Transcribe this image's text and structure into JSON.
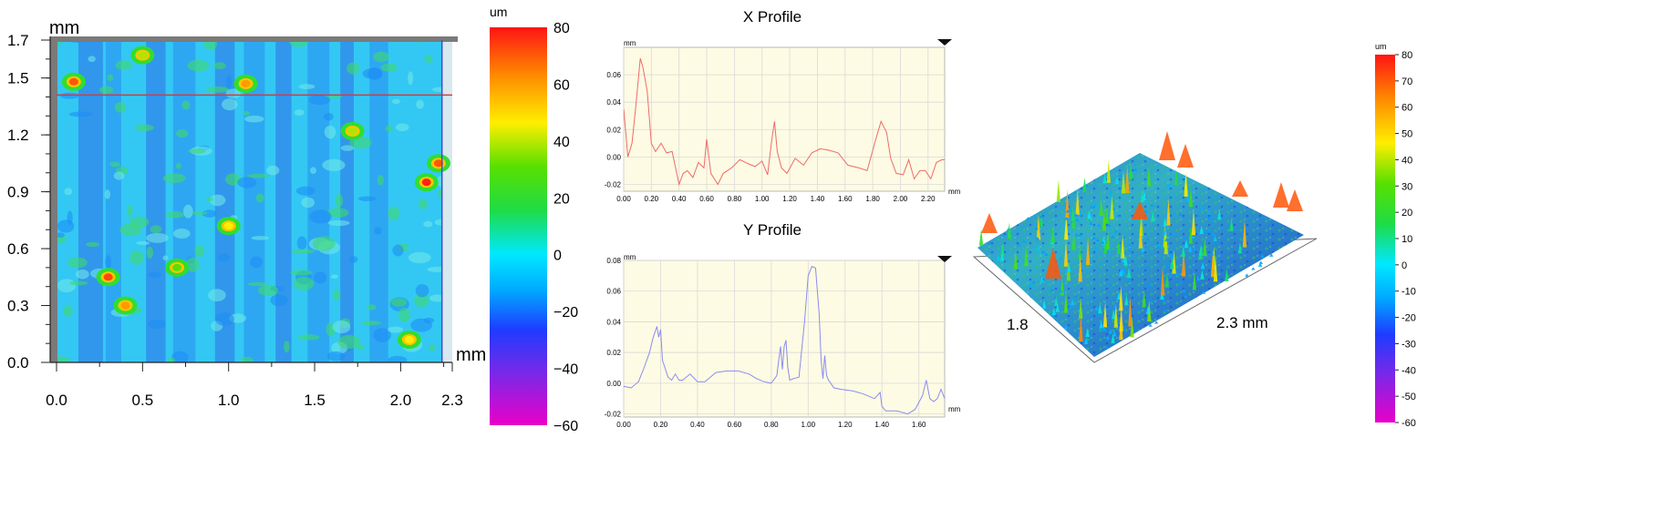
{
  "colors": {
    "xprofile_line": "#f06a6a",
    "yprofile_line": "#8c8cf0",
    "profile_bg": "#fdfbe3",
    "crosshair_h": "#d43c3c",
    "crosshair_v": "#3c50c8"
  },
  "chart_data": [
    {
      "type": "heatmap",
      "id": "height_map",
      "x_unit": "mm",
      "y_unit": "mm",
      "xlim": [
        0,
        2.3
      ],
      "ylim": [
        0,
        1.7
      ],
      "x_ticks": [
        "0.0",
        "0.5",
        "1.0",
        "1.5",
        "2.0",
        "2.3"
      ],
      "y_ticks": [
        "0.0",
        "0.3",
        "0.6",
        "0.9",
        "1.2",
        "1.5",
        "1.7"
      ],
      "crosshair": {
        "x": 2.24,
        "y": 1.41
      },
      "peaks": [
        {
          "x": 0.1,
          "y": 1.48,
          "z": 70
        },
        {
          "x": 1.1,
          "y": 1.47,
          "z": 60
        },
        {
          "x": 0.5,
          "y": 1.62,
          "z": 45
        },
        {
          "x": 0.3,
          "y": 0.45,
          "z": 72
        },
        {
          "x": 0.4,
          "y": 0.3,
          "z": 60
        },
        {
          "x": 2.15,
          "y": 0.95,
          "z": 78
        },
        {
          "x": 2.22,
          "y": 1.05,
          "z": 70
        },
        {
          "x": 1.0,
          "y": 0.72,
          "z": 50
        },
        {
          "x": 2.05,
          "y": 0.12,
          "z": 50
        },
        {
          "x": 1.72,
          "y": 1.22,
          "z": 45
        },
        {
          "x": 0.7,
          "y": 0.5,
          "z": 40
        }
      ],
      "colorbar": {
        "unit": "um",
        "range": [
          -60,
          80
        ],
        "ticks": [
          "80",
          "60",
          "40",
          "20",
          "0",
          "−20",
          "−40",
          "−60"
        ]
      }
    },
    {
      "type": "line",
      "id": "x_profile",
      "title": "X Profile",
      "y_unit": "mm",
      "x_unit": "mm",
      "xlim": [
        0,
        2.32
      ],
      "ylim": [
        -0.025,
        0.08
      ],
      "x_ticks": [
        "0.00",
        "0.20",
        "0.40",
        "0.60",
        "0.80",
        "1.00",
        "1.20",
        "1.40",
        "1.60",
        "1.80",
        "2.00",
        "2.20"
      ],
      "y_ticks": [
        "0.06",
        "0.04",
        "0.02",
        "0.00",
        "-0.02"
      ],
      "x": [
        0.0,
        0.03,
        0.06,
        0.09,
        0.12,
        0.14,
        0.17,
        0.2,
        0.23,
        0.27,
        0.31,
        0.35,
        0.4,
        0.43,
        0.46,
        0.5,
        0.54,
        0.58,
        0.6,
        0.63,
        0.68,
        0.72,
        0.78,
        0.84,
        0.9,
        0.95,
        1.0,
        1.04,
        1.07,
        1.09,
        1.11,
        1.14,
        1.18,
        1.24,
        1.3,
        1.36,
        1.42,
        1.48,
        1.55,
        1.62,
        1.7,
        1.76,
        1.82,
        1.86,
        1.9,
        1.93,
        1.97,
        2.02,
        2.06,
        2.1,
        2.14,
        2.18,
        2.22,
        2.26,
        2.3,
        2.32
      ],
      "y": [
        0.035,
        0.0,
        0.01,
        0.04,
        0.072,
        0.065,
        0.048,
        0.01,
        0.004,
        0.01,
        0.003,
        0.004,
        -0.02,
        -0.012,
        -0.01,
        -0.015,
        -0.004,
        -0.008,
        0.013,
        -0.012,
        -0.02,
        -0.012,
        -0.008,
        -0.002,
        -0.005,
        -0.007,
        -0.003,
        -0.013,
        0.012,
        0.026,
        0.004,
        -0.008,
        -0.012,
        -0.001,
        -0.006,
        0.003,
        0.006,
        0.005,
        0.003,
        -0.006,
        -0.008,
        -0.01,
        0.012,
        0.026,
        0.018,
        -0.001,
        -0.012,
        -0.013,
        -0.002,
        -0.016,
        -0.01,
        -0.01,
        -0.016,
        -0.004,
        -0.002,
        -0.002
      ]
    },
    {
      "type": "line",
      "id": "y_profile",
      "title": "Y Profile",
      "y_unit": "mm",
      "x_unit": "mm",
      "xlim": [
        0,
        1.74
      ],
      "ylim": [
        -0.022,
        0.08
      ],
      "x_ticks": [
        "0.00",
        "0.20",
        "0.40",
        "0.60",
        "0.80",
        "1.00",
        "1.20",
        "1.40",
        "1.60"
      ],
      "y_ticks": [
        "0.08",
        "0.06",
        "0.04",
        "0.02",
        "0.00",
        "-0.02"
      ],
      "x": [
        0.0,
        0.04,
        0.08,
        0.11,
        0.14,
        0.16,
        0.18,
        0.19,
        0.2,
        0.21,
        0.24,
        0.26,
        0.28,
        0.3,
        0.32,
        0.36,
        0.4,
        0.44,
        0.5,
        0.56,
        0.62,
        0.68,
        0.72,
        0.76,
        0.8,
        0.83,
        0.85,
        0.86,
        0.87,
        0.88,
        0.89,
        0.9,
        0.92,
        0.95,
        0.98,
        1.0,
        1.02,
        1.04,
        1.06,
        1.07,
        1.08,
        1.09,
        1.1,
        1.11,
        1.14,
        1.18,
        1.24,
        1.3,
        1.36,
        1.39,
        1.4,
        1.42,
        1.48,
        1.54,
        1.58,
        1.62,
        1.64,
        1.66,
        1.68,
        1.7,
        1.72,
        1.74
      ],
      "y": [
        -0.002,
        -0.003,
        0.001,
        0.01,
        0.02,
        0.03,
        0.037,
        0.03,
        0.035,
        0.015,
        0.004,
        0.002,
        0.006,
        0.002,
        0.002,
        0.006,
        0.001,
        0.001,
        0.007,
        0.008,
        0.008,
        0.006,
        0.003,
        0.001,
        0.0,
        0.005,
        0.024,
        0.009,
        0.024,
        0.028,
        0.01,
        0.002,
        0.003,
        0.004,
        0.04,
        0.07,
        0.076,
        0.075,
        0.045,
        0.015,
        0.003,
        0.018,
        0.005,
        0.002,
        -0.003,
        -0.004,
        -0.005,
        -0.007,
        -0.01,
        -0.006,
        -0.015,
        -0.018,
        -0.018,
        -0.02,
        -0.017,
        -0.008,
        0.002,
        -0.01,
        -0.012,
        -0.01,
        -0.004,
        -0.01
      ]
    },
    {
      "type": "surface3d",
      "id": "surface_3d",
      "depth_label": "1.8",
      "width_label": "2.3 mm",
      "colorbar": {
        "unit": "um",
        "range": [
          -60,
          80
        ],
        "ticks": [
          "80",
          "70",
          "60",
          "50",
          "40",
          "30",
          "20",
          "10",
          "0",
          "-10",
          "-20",
          "-30",
          "-40",
          "-50",
          "-60"
        ]
      }
    }
  ]
}
